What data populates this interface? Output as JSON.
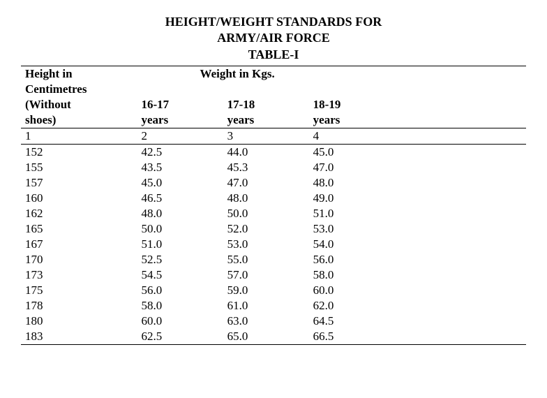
{
  "title": {
    "line1": "HEIGHT/WEIGHT STANDARDS FOR",
    "line2": "ARMY/AIR FORCE",
    "line3": "TABLE-I"
  },
  "table": {
    "type": "table",
    "header": {
      "height_label_line1": "Height in",
      "height_label_line2": "Centimetres",
      "height_label_line3": "(Without",
      "height_label_line4": "shoes)",
      "weight_label": "Weight in Kgs.",
      "age1_line1": "16-17",
      "age1_line2": "years",
      "age2_line1": "17-18",
      "age2_line2": "years",
      "age3_line1": "18-19",
      "age3_line2": "years"
    },
    "index_row": [
      "1",
      "2",
      "3",
      "4"
    ],
    "rows": [
      [
        "152",
        "42.5",
        "44.0",
        "45.0"
      ],
      [
        "155",
        "43.5",
        "45.3",
        "47.0"
      ],
      [
        "157",
        "45.0",
        "47.0",
        "48.0"
      ],
      [
        "160",
        "46.5",
        "48.0",
        "49.0"
      ],
      [
        "162",
        "48.0",
        "50.0",
        "51.0"
      ],
      [
        "165",
        "50.0",
        "52.0",
        "53.0"
      ],
      [
        "167",
        "51.0",
        "53.0",
        "54.0"
      ],
      [
        "170",
        "52.5",
        "55.0",
        "56.0"
      ],
      [
        "173",
        "54.5",
        "57.0",
        "58.0"
      ],
      [
        "175",
        "56.0",
        "59.0",
        "60.0"
      ],
      [
        "178",
        "58.0",
        "61.0",
        "62.0"
      ],
      [
        "180",
        "60.0",
        "63.0",
        "64.5"
      ],
      [
        "183",
        "62.5",
        "65.0",
        "66.5"
      ]
    ],
    "colors": {
      "text": "#000000",
      "background": "#ffffff",
      "rule": "#000000"
    },
    "font": {
      "family": "Palatino/Book Antiqua serif",
      "size_body": 17,
      "size_title": 18,
      "weight_title": "bold",
      "weight_header": "bold"
    }
  }
}
